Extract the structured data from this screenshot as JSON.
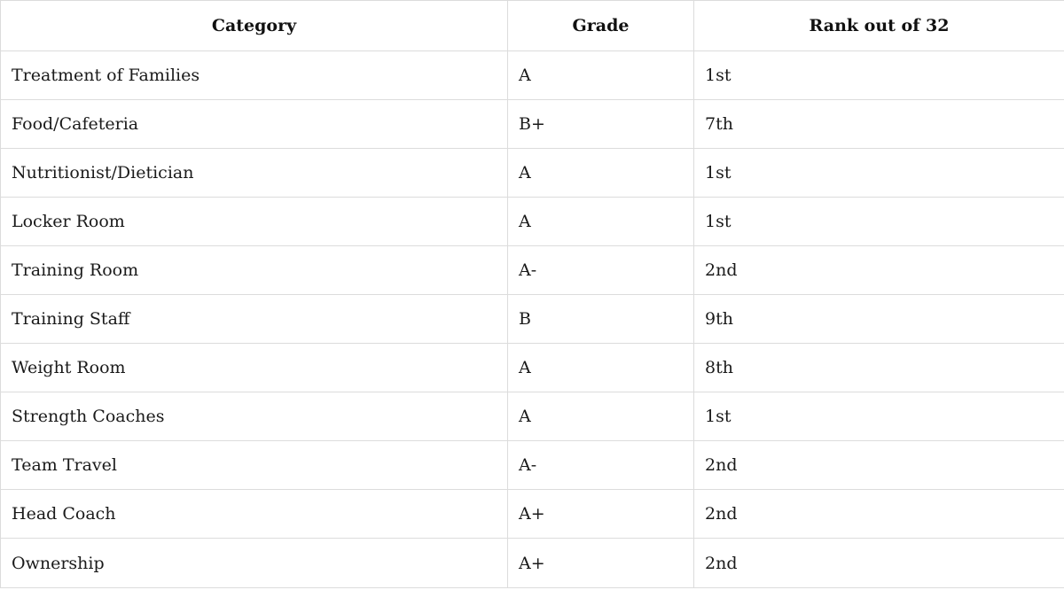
{
  "table": {
    "headers": [
      "Category",
      "Grade",
      "Rank out of 32"
    ],
    "rows": [
      [
        "Treatment of Families",
        "A",
        "1st"
      ],
      [
        "Food/Cafeteria",
        "B+",
        "7th"
      ],
      [
        "Nutritionist/Dietician",
        "A",
        "1st"
      ],
      [
        "Locker Room",
        "A",
        "1st"
      ],
      [
        "Training Room",
        "A-",
        "2nd"
      ],
      [
        "Training Staff",
        "B",
        "9th"
      ],
      [
        "Weight Room",
        "A",
        "8th"
      ],
      [
        "Strength Coaches",
        "A",
        "1st"
      ],
      [
        "Team Travel",
        "A-",
        "2nd"
      ],
      [
        "Head Coach",
        "A+",
        "2nd"
      ],
      [
        "Ownership",
        "A+",
        "2nd"
      ]
    ]
  }
}
